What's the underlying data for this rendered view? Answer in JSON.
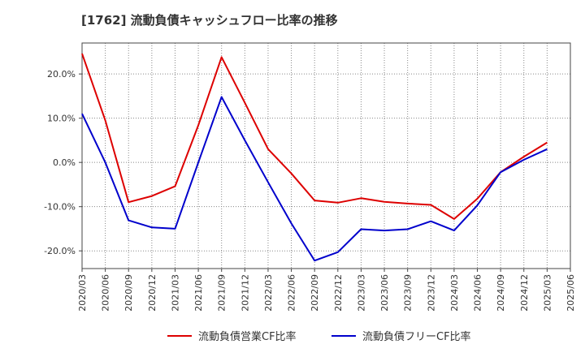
{
  "chart_data": {
    "type": "line",
    "title": "[1762]  流動負債キャッシュフロー比率の推移",
    "x": [
      "2020/03",
      "2020/06",
      "2020/09",
      "2020/12",
      "2021/03",
      "2021/06",
      "2021/09",
      "2021/12",
      "2022/03",
      "2022/06",
      "2022/09",
      "2022/12",
      "2023/03",
      "2023/06",
      "2023/09",
      "2023/12",
      "2024/03",
      "2024/06",
      "2024/09",
      "2024/12",
      "2025/03",
      "2025/06"
    ],
    "ylim": [
      -24,
      27
    ],
    "yticks": [
      20,
      10,
      0,
      -10,
      -20
    ],
    "ytick_labels": [
      "20.0%",
      "10.0%",
      "0.0%",
      "-10.0%",
      "-20.0%"
    ],
    "grid": true,
    "legend_position": "bottom",
    "series": [
      {
        "name": "流動負債営業CF比率",
        "color": "#dd0000",
        "values": [
          24.6,
          9.5,
          -9.0,
          -7.6,
          -5.4,
          8.4,
          23.8,
          13.5,
          3.0,
          -2.5,
          -8.6,
          -9.1,
          -8.1,
          -8.9,
          -9.3,
          -9.6,
          -12.8,
          -8.2,
          -2.2,
          1.3,
          4.5,
          null
        ]
      },
      {
        "name": "流動負債フリーCF比率",
        "color": "#0000cc",
        "values": [
          11.0,
          0.0,
          -13.1,
          -14.7,
          -15.0,
          0.0,
          14.8,
          5.0,
          -4.5,
          -13.8,
          -22.2,
          -20.3,
          -15.1,
          -15.4,
          -15.1,
          -13.3,
          -15.4,
          -9.7,
          -2.2,
          0.6,
          3.0,
          null
        ]
      }
    ]
  }
}
